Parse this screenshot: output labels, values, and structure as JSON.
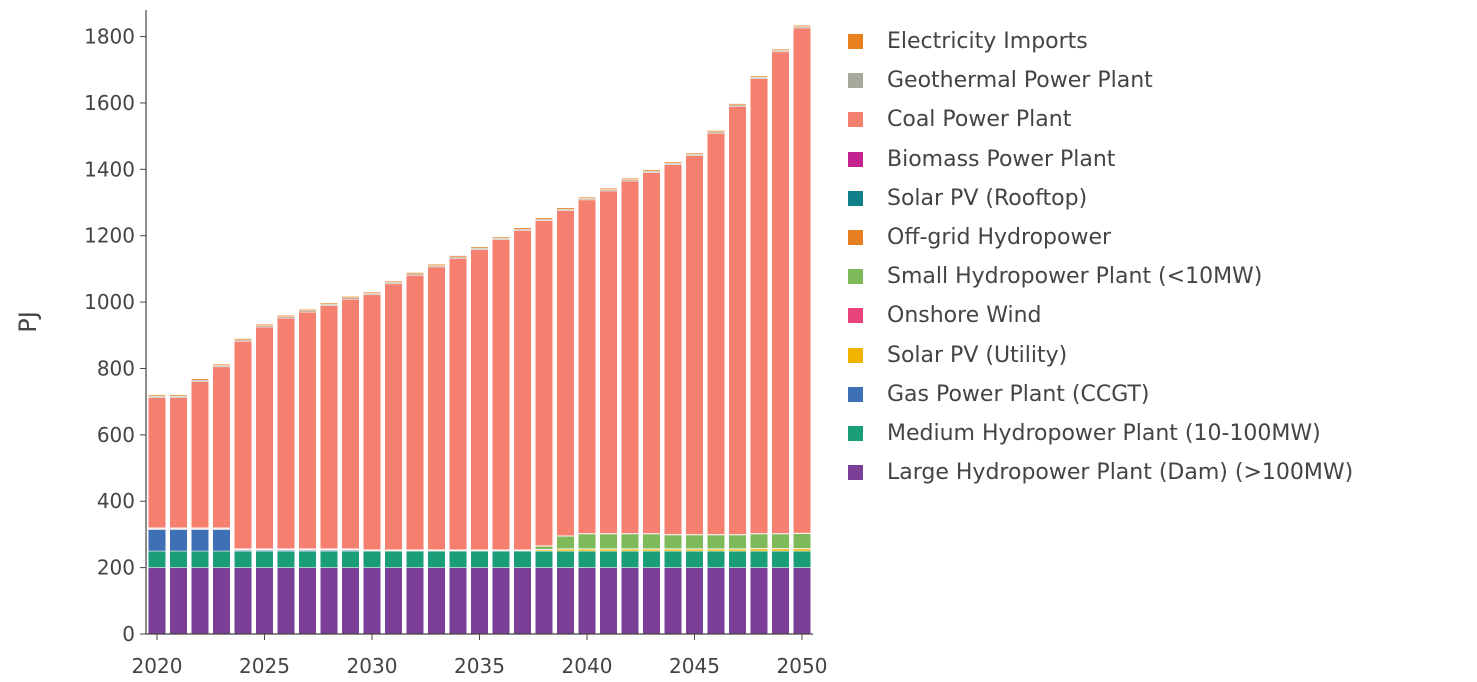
{
  "chart_data": {
    "type": "bar",
    "stacked": true,
    "ylabel": "PJ",
    "xlabel": "",
    "ylim": [
      0,
      1880
    ],
    "yticks": [
      0,
      200,
      400,
      600,
      800,
      1000,
      1200,
      1400,
      1600,
      1800
    ],
    "xticks": [
      2020,
      2025,
      2030,
      2035,
      2040,
      2045,
      2050
    ],
    "categories": [
      2020,
      2021,
      2022,
      2023,
      2024,
      2025,
      2026,
      2027,
      2028,
      2029,
      2030,
      2031,
      2032,
      2033,
      2034,
      2035,
      2036,
      2037,
      2038,
      2039,
      2040,
      2041,
      2042,
      2043,
      2044,
      2045,
      2046,
      2047,
      2048,
      2049,
      2050
    ],
    "legend_position": "right",
    "series": [
      {
        "name": "Large Hydropower Plant (Dam) (>100MW)",
        "color": "#7b3f98",
        "values": [
          200,
          200,
          200,
          200,
          200,
          200,
          200,
          200,
          200,
          200,
          200,
          200,
          200,
          200,
          200,
          200,
          200,
          200,
          200,
          200,
          200,
          200,
          200,
          200,
          200,
          200,
          200,
          200,
          200,
          200,
          200
        ]
      },
      {
        "name": "Medium Hydropower Plant (10-100MW)",
        "color": "#1a9e77",
        "values": [
          50,
          50,
          50,
          50,
          50,
          50,
          50,
          50,
          50,
          50,
          50,
          50,
          50,
          50,
          50,
          50,
          50,
          50,
          50,
          50,
          50,
          50,
          50,
          50,
          50,
          50,
          50,
          50,
          50,
          50,
          50
        ]
      },
      {
        "name": "Gas Power Plant (CCGT)",
        "color": "#3f6fb5",
        "values": [
          65,
          65,
          65,
          65,
          3,
          3,
          3,
          3,
          3,
          3,
          0,
          0,
          0,
          0,
          0,
          0,
          0,
          0,
          0,
          0,
          0,
          0,
          0,
          0,
          0,
          0,
          0,
          0,
          0,
          0,
          0
        ]
      },
      {
        "name": "Solar PV (Utility)",
        "color": "#f0b400",
        "values": [
          2,
          2,
          2,
          2,
          2,
          2,
          2,
          2,
          2,
          2,
          2,
          2,
          2,
          2,
          2,
          2,
          2,
          2,
          4,
          6,
          6,
          6,
          6,
          6,
          6,
          6,
          6,
          6,
          7,
          7,
          7
        ]
      },
      {
        "name": "Onshore Wind",
        "color": "#e8437a",
        "values": [
          2,
          2,
          2,
          2,
          1,
          1,
          1,
          1,
          1,
          1,
          1,
          1,
          1,
          1,
          1,
          1,
          1,
          1,
          1,
          1,
          1,
          1,
          1,
          1,
          1,
          1,
          1,
          1,
          1,
          1,
          1
        ]
      },
      {
        "name": "Small Hydropower Plant (<10MW)",
        "color": "#7fba5a",
        "values": [
          0,
          0,
          0,
          0,
          0,
          0,
          0,
          0,
          0,
          0,
          0,
          0,
          0,
          0,
          0,
          0,
          0,
          0,
          10,
          38,
          45,
          45,
          45,
          45,
          42,
          42,
          42,
          42,
          44,
          44,
          45
        ]
      },
      {
        "name": "Off-grid Hydropower",
        "color": "#e67e22",
        "values": [
          0,
          0,
          0,
          0,
          0,
          0,
          0,
          0,
          0,
          0,
          0,
          0,
          0,
          0,
          0,
          0,
          0,
          0,
          0,
          0,
          0,
          0,
          0,
          0,
          0,
          0,
          0,
          0,
          0,
          0,
          0
        ]
      },
      {
        "name": "Solar PV (Rooftop)",
        "color": "#0f7f8a",
        "values": [
          0,
          0,
          0,
          0,
          0,
          0,
          0,
          0,
          0,
          0,
          0,
          0,
          0,
          0,
          0,
          0,
          0,
          0,
          0,
          0,
          0,
          0,
          0,
          0,
          0,
          0,
          0,
          0,
          0,
          0,
          0
        ]
      },
      {
        "name": "Biomass Power Plant",
        "color": "#c4248f",
        "values": [
          1,
          1,
          1,
          1,
          1,
          1,
          1,
          1,
          1,
          1,
          1,
          1,
          1,
          1,
          1,
          1,
          1,
          1,
          1,
          1,
          1,
          1,
          1,
          1,
          1,
          1,
          1,
          1,
          1,
          1,
          1
        ]
      },
      {
        "name": "Coal Power Plant",
        "color": "#f58070",
        "values": [
          392,
          392,
          441,
          485,
          625,
          668,
          695,
          713,
          732,
          752,
          768,
          801,
          827,
          852,
          878,
          904,
          934,
          962,
          980,
          980,
          1005,
          1032,
          1062,
          1087,
          1114,
          1141,
          1209,
          1290,
          1370,
          1451,
          1522
        ]
      },
      {
        "name": "Geothermal Power Plant",
        "color": "#a9a99b",
        "values": [
          4,
          4,
          4,
          4,
          4,
          4,
          4,
          4,
          4,
          4,
          4,
          4,
          4,
          4,
          4,
          4,
          4,
          4,
          4,
          4,
          4,
          4,
          4,
          4,
          4,
          4,
          4,
          4,
          4,
          4,
          4
        ]
      },
      {
        "name": "Electricity Imports",
        "color": "#e8821e",
        "values": [
          4,
          4,
          4,
          4,
          4,
          4,
          4,
          4,
          4,
          4,
          4,
          4,
          4,
          4,
          4,
          4,
          4,
          4,
          4,
          4,
          4,
          4,
          4,
          4,
          4,
          4,
          4,
          4,
          4,
          4,
          4
        ]
      }
    ]
  }
}
